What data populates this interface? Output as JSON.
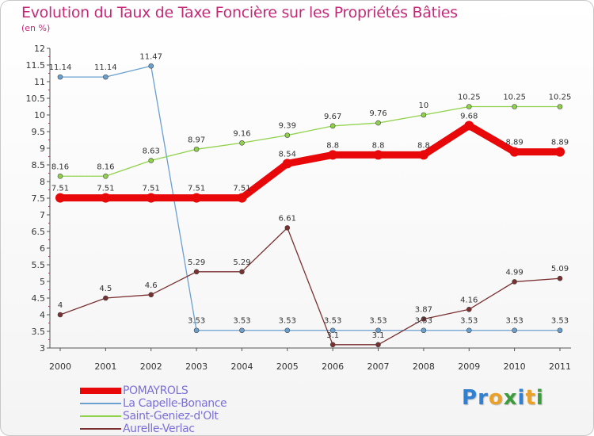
{
  "title": "Evolution du Taux de Taxe Foncière sur les Propriétés Bâties",
  "subtitle": "(en %)",
  "logo_letters": [
    {
      "ch": "P",
      "color": "#2f7fd2"
    },
    {
      "ch": "r",
      "color": "#2f7fd2"
    },
    {
      "ch": "o",
      "color": "#e9a12a"
    },
    {
      "ch": "x",
      "color": "#3c9c3c"
    },
    {
      "ch": "i",
      "color": "#2f7fd2"
    },
    {
      "ch": "t",
      "color": "#e9a12a"
    },
    {
      "ch": "i",
      "color": "#3c9c3c"
    }
  ],
  "chart_data": {
    "type": "line",
    "title": "Evolution du Taux de Taxe Foncière sur les Propriétés Bâties",
    "subtitle": "(en %)",
    "xlabel": "",
    "ylabel": "",
    "categories": [
      "2000",
      "2001",
      "2002",
      "2003",
      "2004",
      "2005",
      "2006",
      "2007",
      "2008",
      "2009",
      "2010",
      "2011"
    ],
    "ylim": [
      3,
      12
    ],
    "yticks": [
      3,
      3.5,
      4,
      4.5,
      5,
      5.5,
      6,
      6.5,
      7,
      7.5,
      8,
      8.5,
      9,
      9.5,
      10,
      10.5,
      11,
      11.5,
      12
    ],
    "ytick_labels": [
      "3",
      "3.5",
      "4",
      "4.5",
      "5",
      "5.5",
      "6",
      "6.5",
      "7",
      "7.5",
      "8",
      "8.5",
      "9",
      "9.5",
      "10",
      "10.5",
      "11",
      "11.5",
      "12"
    ],
    "grid": false,
    "legend_position": "bottom-left",
    "series": [
      {
        "name": "POMAYROLS",
        "color": "#e8080a",
        "thick": true,
        "values": [
          7.51,
          7.51,
          7.51,
          7.51,
          7.51,
          8.54,
          8.8,
          8.8,
          8.8,
          9.68,
          8.89,
          8.89
        ],
        "labels": [
          "7.51",
          "7.51",
          "7.51",
          "7.51",
          "7.51",
          "8.54",
          "8.8",
          "8.8",
          "8.8",
          "9.68",
          "8.89",
          "8.89"
        ]
      },
      {
        "name": "La Capelle-Bonance",
        "color": "#6aa0d0",
        "thick": false,
        "values": [
          11.14,
          11.14,
          11.47,
          3.53,
          3.53,
          3.53,
          3.53,
          3.53,
          3.53,
          3.53,
          3.53,
          3.53
        ],
        "labels": [
          "11.14",
          "11.14",
          "11.47",
          "3.53",
          "3.53",
          "3.53",
          "3.53",
          "3.53",
          "3.53",
          "3.53",
          "3.53",
          "3.53"
        ]
      },
      {
        "name": "Saint-Geniez-d'Olt",
        "color": "#8fd24a",
        "thick": false,
        "values": [
          8.16,
          8.16,
          8.63,
          8.97,
          9.16,
          9.39,
          9.67,
          9.76,
          10,
          10.25,
          10.25,
          10.25
        ],
        "labels": [
          "8.16",
          "8.16",
          "8.63",
          "8.97",
          "9.16",
          "9.39",
          "9.67",
          "9.76",
          "10",
          "10.25",
          "10.25",
          "10.25"
        ]
      },
      {
        "name": "Aurelle-Verlac",
        "color": "#7a3030",
        "thick": false,
        "values": [
          4,
          4.5,
          4.6,
          5.29,
          5.29,
          6.61,
          3.1,
          3.1,
          3.87,
          4.16,
          4.99,
          5.09
        ],
        "labels": [
          "4",
          "4.5",
          "4.6",
          "5.29",
          "5.29",
          "6.61",
          "3.1",
          "3.1",
          "3.87",
          "4.16",
          "4.99",
          "5.09"
        ]
      }
    ]
  }
}
